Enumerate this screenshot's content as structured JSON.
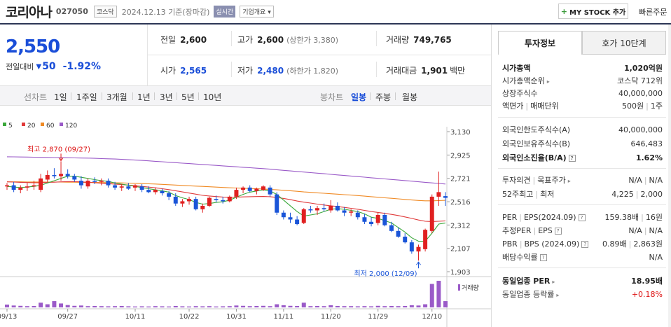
{
  "header": {
    "title": "코리아나",
    "code": "027050",
    "market": "코스닥",
    "date": "2024.12.13",
    "basis": "기준(장마감)",
    "realtime": "실시간",
    "overview": "기업개요",
    "mystock": "MY STOCK 추가",
    "fast_order": "빠른주문"
  },
  "price": {
    "current": "2,550",
    "prev_label": "전일대비",
    "change": "50",
    "change_pct": "-1.92%"
  },
  "stats": {
    "prev_close_l": "전일",
    "prev_close_v": "2,600",
    "high_l": "고가",
    "high_v": "2,600",
    "high_sub": "(상한가 3,380)",
    "volume_l": "거래량",
    "volume_v": "749,765",
    "open_l": "시가",
    "open_v": "2,565",
    "low_l": "저가",
    "low_v": "2,480",
    "low_sub": "(하한가 1,820)",
    "amount_l": "거래대금",
    "amount_v": "1,901",
    "amount_unit": "백만"
  },
  "periods": {
    "line_head": "선차트",
    "line": [
      "1일",
      "1주일",
      "3개월",
      "1년",
      "3년",
      "5년",
      "10년"
    ],
    "candle_head": "봉차트",
    "candle": [
      "일봉",
      "주봉",
      "월봉"
    ],
    "candle_active": "일봉"
  },
  "right": {
    "tab_active": "투자정보",
    "tab_other": "호가 10단계",
    "rows1": [
      {
        "k": "시가총액",
        "v": "1,020억원"
      },
      {
        "k": "시가총액순위",
        "v": "코스닥 712위"
      },
      {
        "k": "상장주식수",
        "v": "40,000,000"
      },
      {
        "k1": "액면가",
        "k2": "매매단위",
        "v1": "500원",
        "v2": "1주"
      }
    ],
    "rows2": [
      {
        "k": "외국인한도주식수(A)",
        "v": "40,000,000"
      },
      {
        "k": "외국인보유주식수(B)",
        "v": "646,483"
      },
      {
        "k": "외국인소진율(B/A)",
        "v": "1.62%"
      }
    ],
    "rows3": [
      {
        "k1": "투자의견",
        "k2": "목표주가",
        "v1": "N/A",
        "v2": "N/A"
      },
      {
        "k1": "52주최고",
        "k2": "최저",
        "v1": "4,225",
        "v2": "2,000"
      }
    ],
    "rows4": [
      {
        "k1": "PER",
        "k2": "EPS(2024.09)",
        "v1": "159.38배",
        "v2": "16원"
      },
      {
        "k1": "추정PER",
        "k2": "EPS",
        "v1": "N/A",
        "v2": "N/A"
      },
      {
        "k1": "PBR",
        "k2": "BPS (2024.09)",
        "v1": "0.89배",
        "v2": "2,863원"
      },
      {
        "k": "배당수익률",
        "v": "N/A"
      }
    ],
    "rows5": [
      {
        "k": "동일업종 PER",
        "v": "18.95배"
      },
      {
        "k": "동일업종 등락률",
        "v": "+0.18%"
      }
    ]
  },
  "chart_data": {
    "type": "candlestick",
    "legend": [
      {
        "name": "5",
        "color": "#3aa83a"
      },
      {
        "name": "20",
        "color": "#e03a3a"
      },
      {
        "name": "60",
        "color": "#f08a24"
      },
      {
        "name": "120",
        "color": "#9a5ac8"
      }
    ],
    "y_ticks": [
      "3,130",
      "2,925",
      "2,721",
      "2,516",
      "2,312",
      "2,107",
      "1,903"
    ],
    "ylim": [
      1903,
      3130
    ],
    "x_ticks": [
      {
        "i": 0,
        "label": "09/13"
      },
      {
        "i": 9,
        "label": "09/27"
      },
      {
        "i": 19,
        "label": "10/11"
      },
      {
        "i": 27,
        "label": "10/22"
      },
      {
        "i": 34,
        "label": "10/31"
      },
      {
        "i": 41,
        "label": "11/11"
      },
      {
        "i": 48,
        "label": "11/20"
      },
      {
        "i": 55,
        "label": "11/29"
      },
      {
        "i": 63,
        "label": "12/10"
      }
    ],
    "annot_high": "최고 2,870 (09/27)",
    "annot_low": "최저 2,000 (12/09)",
    "volume_label": "거래량",
    "candles": [
      [
        2650,
        2680,
        2620,
        2660
      ],
      [
        2660,
        2690,
        2600,
        2620
      ],
      [
        2620,
        2660,
        2590,
        2640
      ],
      [
        2640,
        2680,
        2610,
        2650
      ],
      [
        2650,
        2700,
        2620,
        2660
      ],
      [
        2620,
        2760,
        2600,
        2720
      ],
      [
        2710,
        2790,
        2690,
        2750
      ],
      [
        2750,
        2810,
        2720,
        2740
      ],
      [
        2740,
        2870,
        2700,
        2760
      ],
      [
        2760,
        2800,
        2720,
        2740
      ],
      [
        2740,
        2760,
        2690,
        2710
      ],
      [
        2700,
        2740,
        2630,
        2660
      ],
      [
        2650,
        2720,
        2630,
        2700
      ],
      [
        2700,
        2730,
        2670,
        2690
      ],
      [
        2690,
        2720,
        2660,
        2700
      ],
      [
        2700,
        2720,
        2640,
        2660
      ],
      [
        2660,
        2690,
        2620,
        2640
      ],
      [
        2640,
        2670,
        2610,
        2650
      ],
      [
        2650,
        2680,
        2620,
        2630
      ],
      [
        2640,
        2670,
        2610,
        2660
      ],
      [
        2650,
        2670,
        2600,
        2620
      ],
      [
        2620,
        2650,
        2590,
        2600
      ],
      [
        2600,
        2640,
        2580,
        2620
      ],
      [
        2610,
        2630,
        2570,
        2590
      ],
      [
        2590,
        2610,
        2530,
        2560
      ],
      [
        2560,
        2590,
        2480,
        2500
      ],
      [
        2500,
        2540,
        2470,
        2520
      ],
      [
        2520,
        2560,
        2490,
        2540
      ],
      [
        2540,
        2560,
        2440,
        2450
      ],
      [
        2450,
        2500,
        2420,
        2480
      ],
      [
        2480,
        2560,
        2470,
        2550
      ],
      [
        2540,
        2570,
        2510,
        2530
      ],
      [
        2530,
        2560,
        2500,
        2520
      ],
      [
        2520,
        2570,
        2510,
        2560
      ],
      [
        2560,
        2640,
        2540,
        2620
      ],
      [
        2620,
        2650,
        2590,
        2640
      ],
      [
        2640,
        2660,
        2600,
        2610
      ],
      [
        2610,
        2640,
        2580,
        2630
      ],
      [
        2620,
        2660,
        2610,
        2650
      ],
      [
        2640,
        2660,
        2560,
        2580
      ],
      [
        2580,
        2600,
        2400,
        2420
      ],
      [
        2420,
        2440,
        2360,
        2380
      ],
      [
        2380,
        2420,
        2330,
        2360
      ],
      [
        2360,
        2390,
        2310,
        2320
      ],
      [
        2330,
        2460,
        2320,
        2450
      ],
      [
        2450,
        2480,
        2420,
        2440
      ],
      [
        2440,
        2480,
        2400,
        2460
      ],
      [
        2460,
        2500,
        2430,
        2450
      ],
      [
        2440,
        2530,
        2420,
        2480
      ],
      [
        2480,
        2510,
        2430,
        2440
      ],
      [
        2440,
        2470,
        2390,
        2420
      ],
      [
        2420,
        2450,
        2390,
        2430
      ],
      [
        2420,
        2440,
        2360,
        2380
      ],
      [
        2380,
        2410,
        2320,
        2340
      ],
      [
        2340,
        2380,
        2300,
        2320
      ],
      [
        2330,
        2420,
        2310,
        2400
      ],
      [
        2400,
        2420,
        2300,
        2310
      ],
      [
        2310,
        2340,
        2250,
        2260
      ],
      [
        2260,
        2290,
        2200,
        2210
      ],
      [
        2210,
        2240,
        2150,
        2160
      ],
      [
        2160,
        2180,
        2060,
        2080
      ],
      [
        2080,
        2140,
        2000,
        2120
      ],
      [
        2100,
        2280,
        2080,
        2270
      ],
      [
        2260,
        2580,
        2240,
        2560
      ],
      [
        2560,
        2780,
        2480,
        2600
      ],
      [
        2565,
        2600,
        2480,
        2550
      ]
    ],
    "ma5": [
      2650,
      2645,
      2640,
      2645,
      2650,
      2660,
      2680,
      2700,
      2720,
      2740,
      2740,
      2730,
      2720,
      2710,
      2700,
      2695,
      2680,
      2670,
      2660,
      2650,
      2640,
      2630,
      2620,
      2612,
      2600,
      2570,
      2550,
      2535,
      2510,
      2495,
      2500,
      2510,
      2515,
      2530,
      2555,
      2580,
      2600,
      2610,
      2620,
      2610,
      2580,
      2530,
      2480,
      2430,
      2390,
      2400,
      2410,
      2430,
      2450,
      2455,
      2450,
      2440,
      2430,
      2410,
      2380,
      2370,
      2350,
      2330,
      2290,
      2250,
      2200,
      2170,
      2170,
      2240,
      2320,
      2330
    ],
    "ma20": [
      2690,
      2688,
      2686,
      2684,
      2682,
      2683,
      2685,
      2687,
      2690,
      2692,
      2692,
      2690,
      2686,
      2682,
      2678,
      2674,
      2670,
      2666,
      2662,
      2656,
      2650,
      2644,
      2638,
      2630,
      2622,
      2612,
      2602,
      2592,
      2582,
      2572,
      2566,
      2561,
      2557,
      2555,
      2556,
      2558,
      2560,
      2561,
      2562,
      2560,
      2554,
      2545,
      2534,
      2522,
      2512,
      2504,
      2495,
      2487,
      2480,
      2474,
      2466,
      2458,
      2450,
      2440,
      2430,
      2422,
      2414,
      2405,
      2395,
      2383,
      2370,
      2356,
      2345,
      2342,
      2345,
      2348
    ],
    "ma60": [
      2690,
      2690,
      2690,
      2689,
      2689,
      2689,
      2688,
      2688,
      2688,
      2687,
      2687,
      2686,
      2686,
      2685,
      2684,
      2683,
      2682,
      2681,
      2679,
      2677,
      2675,
      2673,
      2671,
      2668,
      2665,
      2662,
      2659,
      2656,
      2653,
      2650,
      2647,
      2644,
      2641,
      2638,
      2636,
      2634,
      2632,
      2630,
      2627,
      2624,
      2620,
      2616,
      2612,
      2607,
      2602,
      2598,
      2594,
      2590,
      2586,
      2582,
      2578,
      2574,
      2570,
      2565,
      2560,
      2555,
      2550,
      2546,
      2541,
      2536,
      2531,
      2527,
      2524,
      2524,
      2526,
      2528
    ],
    "ma120": [
      2910,
      2909,
      2908,
      2907,
      2906,
      2905,
      2904,
      2903,
      2902,
      2901,
      2900,
      2899,
      2898,
      2896,
      2894,
      2892,
      2890,
      2887,
      2884,
      2881,
      2878,
      2874,
      2870,
      2866,
      2862,
      2858,
      2854,
      2850,
      2846,
      2842,
      2838,
      2834,
      2830,
      2826,
      2822,
      2818,
      2814,
      2810,
      2806,
      2801,
      2796,
      2791,
      2786,
      2781,
      2776,
      2771,
      2766,
      2761,
      2756,
      2751,
      2746,
      2741,
      2736,
      2731,
      2726,
      2721,
      2716,
      2711,
      2706,
      2701,
      2696,
      2691,
      2686,
      2681,
      2676,
      2671
    ],
    "volume": [
      18,
      12,
      10,
      8,
      9,
      30,
      20,
      40,
      25,
      15,
      10,
      12,
      8,
      9,
      8,
      7,
      8,
      9,
      7,
      6,
      7,
      6,
      8,
      7,
      6,
      9,
      7,
      6,
      8,
      7,
      8,
      6,
      7,
      8,
      12,
      10,
      8,
      9,
      10,
      8,
      20,
      14,
      10,
      9,
      30,
      8,
      9,
      8,
      14,
      9,
      8,
      8,
      7,
      8,
      7,
      10,
      8,
      9,
      8,
      9,
      14,
      12,
      20,
      150,
      170,
      40
    ]
  }
}
